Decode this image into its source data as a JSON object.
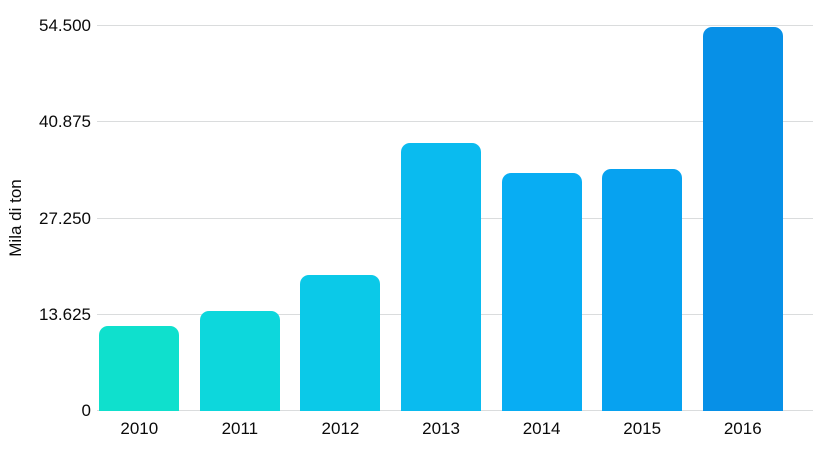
{
  "chart_data": {
    "type": "bar",
    "title": "",
    "xlabel": "",
    "ylabel": "Mila di ton",
    "categories": [
      "2010",
      "2011",
      "2012",
      "2013",
      "2014",
      "2015",
      "2016"
    ],
    "values": [
      12100,
      14200,
      19200,
      38000,
      33700,
      34300,
      54300
    ],
    "ylim": [
      0,
      54500
    ],
    "yticks": [
      {
        "value": 0,
        "label": "0"
      },
      {
        "value": 13625,
        "label": "13.625"
      },
      {
        "value": 27250,
        "label": "27.250"
      },
      {
        "value": 40875,
        "label": "40.875"
      },
      {
        "value": 54500,
        "label": "54.500"
      }
    ],
    "bar_colors": [
      "#0fe0cd",
      "#0dd7dc",
      "#0bc9e8",
      "#0abbef",
      "#08adf3",
      "#07a2f0",
      "#0790e7"
    ],
    "grid": "horizontal",
    "legend": "none",
    "gridline_color": "#dadcdd",
    "text_color": "#0a0a0a",
    "background_color": "#ffffff"
  }
}
